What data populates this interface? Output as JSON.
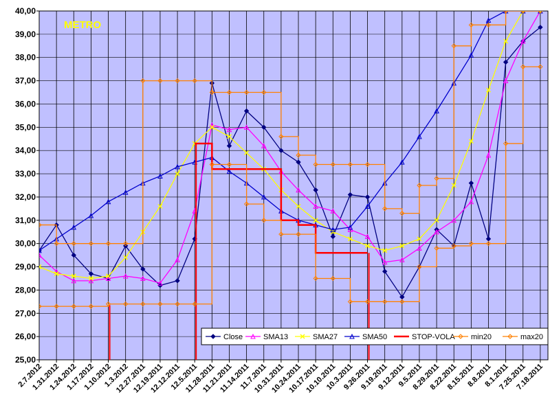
{
  "chart_data": {
    "type": "line",
    "title": "METRO",
    "title_color": "#ffff00",
    "plot_background": "#c0c0ff",
    "xlabel": "",
    "ylabel": "",
    "ylim": [
      25,
      40
    ],
    "y_ticks": [
      "25,00",
      "26,00",
      "27,00",
      "28,00",
      "29,00",
      "30,00",
      "31,00",
      "32,00",
      "33,00",
      "34,00",
      "35,00",
      "36,00",
      "37,00",
      "38,00",
      "39,00",
      "40,00"
    ],
    "x": [
      "2.7.2012",
      "1.31.2012",
      "1.24.2012",
      "1.17.2012",
      "1.10.2012",
      "1.3.2012",
      "12.27.2011",
      "12.19.2011",
      "12.12.2011",
      "12.5.2011",
      "11.28.2011",
      "11.21.2011",
      "11.14.2011",
      "11.7.2011",
      "10.31.2011",
      "10.24.2011",
      "10.17.2011",
      "10.10.2011",
      "10.3.2011",
      "9.26.2011",
      "9.19.2011",
      "9.12.2011",
      "9.5.2011",
      "8.29.2011",
      "8.22.2011",
      "8.15.2011",
      "8.8.2011",
      "8.1.2011",
      "7.25.2011",
      "7.18.2011"
    ],
    "x_note": "Series values are given at the 30 labeled dates (weekly), ordered as printed left to right.",
    "grid": "vertical lines at each date",
    "legend_position": "bottom-right",
    "series": [
      {
        "name": "Close",
        "color": "#000080",
        "marker": "diamond",
        "values": [
          29.7,
          30.8,
          29.5,
          28.7,
          28.5,
          29.9,
          28.9,
          28.2,
          28.4,
          30.2,
          36.9,
          34.2,
          35.7,
          35.0,
          34.0,
          33.5,
          32.3,
          30.3,
          32.1,
          32.0,
          28.8,
          27.7,
          29.0,
          30.6,
          29.9,
          32.6,
          30.2,
          37.8,
          38.7,
          39.3
        ]
      },
      {
        "name": "SMA13",
        "color": "#ff00ff",
        "marker": "triangle",
        "values": [
          29.5,
          28.8,
          28.4,
          28.4,
          28.5,
          28.6,
          28.5,
          28.3,
          29.3,
          31.4,
          35.1,
          34.9,
          35.0,
          34.2,
          33.1,
          32.3,
          31.6,
          31.4,
          30.6,
          30.3,
          29.2,
          29.3,
          29.8,
          30.5,
          31.0,
          31.8,
          33.8,
          37.0,
          38.7,
          40.0
        ]
      },
      {
        "name": "SMA27",
        "color": "#ffff00",
        "marker": "x",
        "values": [
          29.0,
          28.7,
          28.6,
          28.5,
          28.6,
          29.4,
          30.5,
          31.6,
          33.0,
          34.3,
          35.0,
          34.6,
          33.9,
          33.2,
          32.3,
          31.6,
          31.0,
          30.5,
          30.2,
          29.9,
          29.7,
          29.9,
          30.2,
          31.0,
          32.5,
          34.4,
          36.6,
          38.7,
          40.0,
          40.0
        ]
      },
      {
        "name": "SMA50",
        "color": "#0000cc",
        "marker": "triangle-open",
        "values": [
          29.7,
          30.2,
          30.7,
          31.2,
          31.8,
          32.2,
          32.6,
          32.9,
          33.3,
          33.5,
          33.7,
          33.1,
          32.6,
          32.0,
          31.4,
          31.0,
          30.8,
          30.6,
          30.7,
          31.6,
          32.6,
          33.5,
          34.6,
          35.7,
          36.9,
          38.1,
          39.6,
          40.0,
          40.0,
          40.0
        ]
      },
      {
        "name": "STOP-VOLA",
        "color": "#ff0000",
        "marker": "none",
        "values": [
          null,
          null,
          null,
          null,
          27.35,
          null,
          null,
          null,
          null,
          34.3,
          33.2,
          33.2,
          33.2,
          33.2,
          31.0,
          30.8,
          29.6,
          29.6,
          29.6,
          29.6,
          null,
          null,
          null,
          null,
          null,
          null,
          null,
          null,
          null,
          null
        ]
      },
      {
        "name": "min20",
        "color": "#ff8000",
        "marker": "diamond-open",
        "values": [
          27.3,
          27.3,
          27.3,
          27.3,
          27.4,
          27.4,
          27.4,
          27.4,
          27.4,
          27.4,
          33.4,
          33.4,
          31.7,
          31.0,
          30.4,
          30.4,
          28.5,
          28.5,
          27.5,
          27.5,
          27.5,
          27.5,
          29.0,
          29.8,
          29.9,
          30.0,
          30.0,
          34.3,
          37.6,
          37.6
        ]
      },
      {
        "name": "max20",
        "color": "#ff8000",
        "marker": "diamond-open",
        "values": [
          30.8,
          30.0,
          30.0,
          30.0,
          30.0,
          30.0,
          37.0,
          37.0,
          37.0,
          37.0,
          36.5,
          36.5,
          36.5,
          36.5,
          34.6,
          33.8,
          33.4,
          33.4,
          33.4,
          33.4,
          31.5,
          31.3,
          32.5,
          32.8,
          38.5,
          39.4,
          39.4,
          40.0,
          40.0,
          40.0
        ]
      }
    ]
  }
}
